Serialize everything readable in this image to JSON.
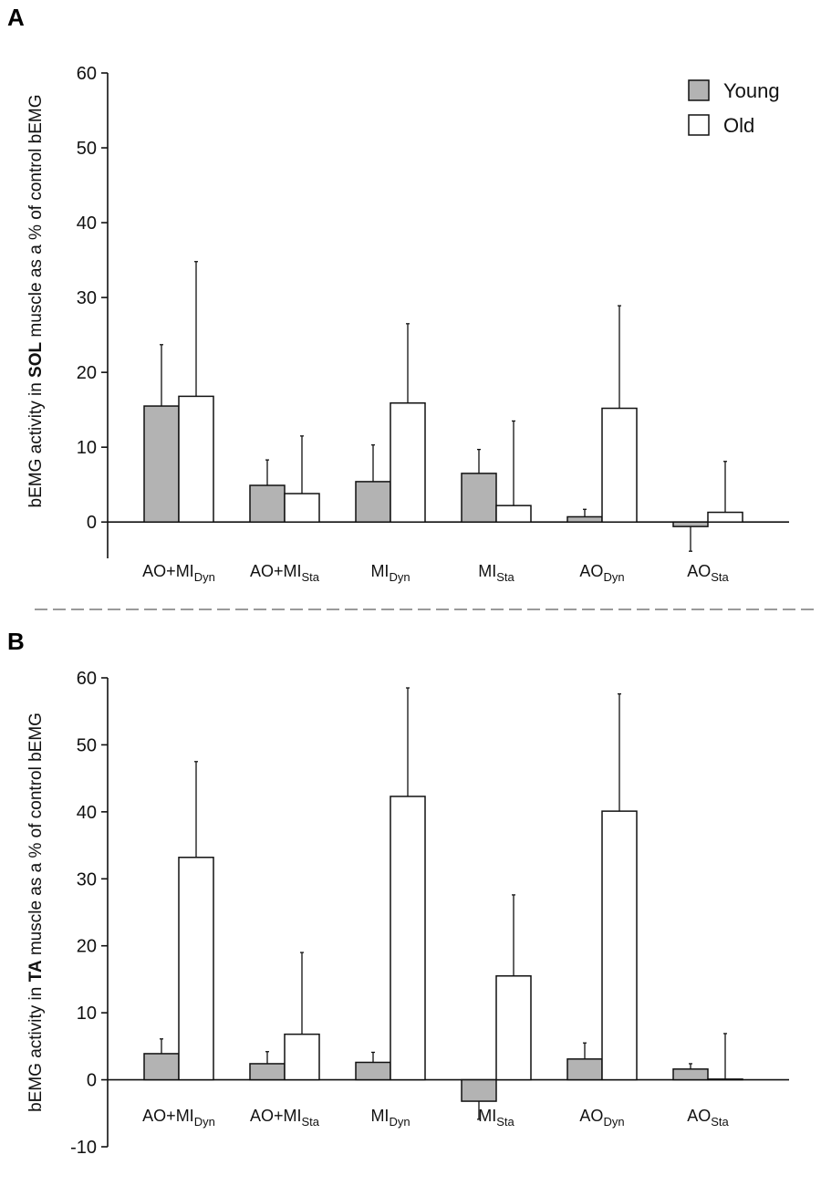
{
  "colors": {
    "young": "#b3b3b3",
    "old": "#ffffff",
    "stroke": "#111111",
    "divider": "#9a9a9a"
  },
  "legend": [
    {
      "name": "Young",
      "color": "#b3b3b3"
    },
    {
      "name": "Old",
      "color": "#ffffff"
    }
  ],
  "chart_data": [
    {
      "type": "bar",
      "panel": "A",
      "ylabel": {
        "pre": "bEMG activity in ",
        "bold": "SOL",
        "post": " muscle  as a % of control bEMG"
      },
      "ylim": [
        -5,
        60
      ],
      "yticks": [
        0,
        10,
        20,
        30,
        40,
        50,
        60
      ],
      "categories": [
        {
          "main": "AO+MI",
          "sub": "Dyn"
        },
        {
          "main": "AO+MI",
          "sub": "Sta"
        },
        {
          "main": "MI",
          "sub": "Dyn"
        },
        {
          "main": "MI",
          "sub": "Sta"
        },
        {
          "main": "AO",
          "sub": "Dyn"
        },
        {
          "main": "AO",
          "sub": "Sta"
        }
      ],
      "series": [
        {
          "name": "Young",
          "values": [
            15.5,
            4.9,
            5.4,
            6.5,
            0.7,
            -0.6
          ],
          "errors": [
            8.2,
            3.4,
            4.9,
            3.2,
            1.0,
            3.3
          ]
        },
        {
          "name": "Old",
          "values": [
            16.8,
            3.8,
            15.9,
            2.2,
            15.2,
            1.3
          ],
          "errors": [
            18.0,
            7.7,
            10.6,
            11.3,
            13.7,
            6.8
          ]
        }
      ],
      "legend_position": "top-right"
    },
    {
      "type": "bar",
      "panel": "B",
      "ylabel": {
        "pre": "bEMG activity in ",
        "bold": "TA",
        "post": " muscle  as a % of control bEMG"
      },
      "ylim": [
        -10,
        60
      ],
      "yticks": [
        -10,
        0,
        10,
        20,
        30,
        40,
        50,
        60
      ],
      "categories": [
        {
          "main": "AO+MI",
          "sub": "Dyn"
        },
        {
          "main": "AO+MI",
          "sub": "Sta"
        },
        {
          "main": "MI",
          "sub": "Dyn"
        },
        {
          "main": "MI",
          "sub": "Sta"
        },
        {
          "main": "AO",
          "sub": "Dyn"
        },
        {
          "main": "AO",
          "sub": "Sta"
        }
      ],
      "series": [
        {
          "name": "Young",
          "values": [
            3.9,
            2.4,
            2.6,
            -3.2,
            3.1,
            1.6
          ],
          "errors": [
            2.2,
            1.8,
            1.5,
            2.7,
            2.4,
            0.8
          ]
        },
        {
          "name": "Old",
          "values": [
            33.2,
            6.8,
            42.3,
            15.5,
            40.1,
            0.1
          ],
          "errors": [
            14.3,
            12.2,
            16.2,
            12.1,
            17.5,
            6.8
          ]
        }
      ]
    }
  ]
}
